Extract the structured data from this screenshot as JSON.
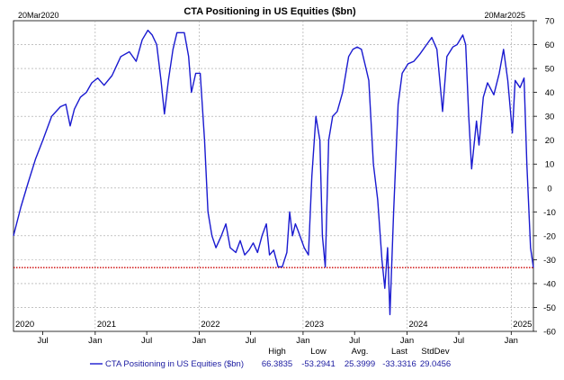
{
  "chart_data": {
    "type": "line",
    "title": "CTA Positioning in US Equities ($bn)",
    "start_label": "20Mar2020",
    "end_label": "20Mar2025",
    "x_range": [
      "2020-03-20",
      "2025-03-20"
    ],
    "ylim": [
      -60,
      70
    ],
    "y_ticks": [
      70,
      60,
      50,
      40,
      30,
      20,
      10,
      0,
      -10,
      -20,
      -30,
      -40,
      -50,
      -60
    ],
    "x_year_ticks": [
      {
        "label": "2020",
        "date": "2020-03-20"
      },
      {
        "label": "2021",
        "date": "2021-01-01"
      },
      {
        "label": "2022",
        "date": "2022-01-01"
      },
      {
        "label": "2023",
        "date": "2023-01-01"
      },
      {
        "label": "2024",
        "date": "2024-01-01"
      },
      {
        "label": "2025",
        "date": "2025-01-01"
      }
    ],
    "x_month_ticks": [
      {
        "label": "Jul",
        "date": "2020-07-01"
      },
      {
        "label": "Jan",
        "date": "2021-01-01"
      },
      {
        "label": "Jul",
        "date": "2021-07-01"
      },
      {
        "label": "Jan",
        "date": "2022-01-01"
      },
      {
        "label": "Jul",
        "date": "2022-07-01"
      },
      {
        "label": "Jan",
        "date": "2023-01-01"
      },
      {
        "label": "Jul",
        "date": "2023-07-01"
      },
      {
        "label": "Jan",
        "date": "2024-01-01"
      },
      {
        "label": "Jul",
        "date": "2024-07-01"
      },
      {
        "label": "Jan",
        "date": "2025-01-01"
      }
    ],
    "grid": true,
    "reference_line": {
      "value": -33.3316,
      "color": "#cc0000",
      "style": "dotted"
    },
    "series": [
      {
        "name": "CTA Positioning in US Equities ($bn)",
        "color": "#1a1ad0",
        "points": [
          [
            "2020-03-20",
            -20
          ],
          [
            "2020-04-15",
            -8
          ],
          [
            "2020-05-10",
            2
          ],
          [
            "2020-06-05",
            12
          ],
          [
            "2020-07-01",
            20
          ],
          [
            "2020-08-01",
            30
          ],
          [
            "2020-09-01",
            34
          ],
          [
            "2020-09-20",
            35
          ],
          [
            "2020-10-05",
            26
          ],
          [
            "2020-10-20",
            33
          ],
          [
            "2020-11-10",
            38
          ],
          [
            "2020-12-01",
            40
          ],
          [
            "2020-12-20",
            44
          ],
          [
            "2021-01-10",
            46
          ],
          [
            "2021-02-01",
            43
          ],
          [
            "2021-03-01",
            47
          ],
          [
            "2021-04-01",
            55
          ],
          [
            "2021-05-01",
            57
          ],
          [
            "2021-05-25",
            53
          ],
          [
            "2021-06-15",
            62
          ],
          [
            "2021-07-05",
            66
          ],
          [
            "2021-07-20",
            64
          ],
          [
            "2021-08-05",
            60
          ],
          [
            "2021-08-20",
            45
          ],
          [
            "2021-09-01",
            31
          ],
          [
            "2021-09-15",
            45
          ],
          [
            "2021-10-01",
            58
          ],
          [
            "2021-10-15",
            65
          ],
          [
            "2021-11-10",
            65
          ],
          [
            "2021-11-25",
            55
          ],
          [
            "2021-12-05",
            40
          ],
          [
            "2021-12-20",
            48
          ],
          [
            "2022-01-05",
            48
          ],
          [
            "2022-01-20",
            20
          ],
          [
            "2022-02-01",
            -10
          ],
          [
            "2022-02-15",
            -20
          ],
          [
            "2022-03-01",
            -25
          ],
          [
            "2022-03-20",
            -20
          ],
          [
            "2022-04-05",
            -15
          ],
          [
            "2022-04-20",
            -25
          ],
          [
            "2022-05-10",
            -27
          ],
          [
            "2022-05-25",
            -22
          ],
          [
            "2022-06-10",
            -28
          ],
          [
            "2022-06-25",
            -26
          ],
          [
            "2022-07-10",
            -23
          ],
          [
            "2022-07-25",
            -27
          ],
          [
            "2022-08-10",
            -20
          ],
          [
            "2022-08-25",
            -15
          ],
          [
            "2022-09-05",
            -28
          ],
          [
            "2022-09-20",
            -26
          ],
          [
            "2022-10-05",
            -33
          ],
          [
            "2022-10-20",
            -33
          ],
          [
            "2022-11-05",
            -27
          ],
          [
            "2022-11-15",
            -10
          ],
          [
            "2022-11-25",
            -20
          ],
          [
            "2022-12-05",
            -15
          ],
          [
            "2022-12-15",
            -18
          ],
          [
            "2023-01-05",
            -25
          ],
          [
            "2023-01-20",
            -28
          ],
          [
            "2023-02-01",
            5
          ],
          [
            "2023-02-15",
            30
          ],
          [
            "2023-03-01",
            20
          ],
          [
            "2023-03-10",
            -20
          ],
          [
            "2023-03-20",
            -33
          ],
          [
            "2023-04-01",
            20
          ],
          [
            "2023-04-15",
            30
          ],
          [
            "2023-05-01",
            32
          ],
          [
            "2023-05-20",
            40
          ],
          [
            "2023-06-10",
            55
          ],
          [
            "2023-06-25",
            58
          ],
          [
            "2023-07-10",
            59
          ],
          [
            "2023-07-25",
            58
          ],
          [
            "2023-08-10",
            50
          ],
          [
            "2023-08-20",
            45
          ],
          [
            "2023-09-05",
            10
          ],
          [
            "2023-09-20",
            -5
          ],
          [
            "2023-10-05",
            -30
          ],
          [
            "2023-10-15",
            -42
          ],
          [
            "2023-10-25",
            -25
          ],
          [
            "2023-11-02",
            -53
          ],
          [
            "2023-11-15",
            -10
          ],
          [
            "2023-12-01",
            35
          ],
          [
            "2023-12-15",
            48
          ],
          [
            "2024-01-05",
            52
          ],
          [
            "2024-01-25",
            53
          ],
          [
            "2024-02-15",
            56
          ],
          [
            "2024-03-10",
            60
          ],
          [
            "2024-03-28",
            63
          ],
          [
            "2024-04-15",
            58
          ],
          [
            "2024-04-25",
            45
          ],
          [
            "2024-05-05",
            32
          ],
          [
            "2024-05-20",
            55
          ],
          [
            "2024-06-10",
            59
          ],
          [
            "2024-06-25",
            60
          ],
          [
            "2024-07-15",
            64
          ],
          [
            "2024-07-25",
            60
          ],
          [
            "2024-08-05",
            30
          ],
          [
            "2024-08-15",
            8
          ],
          [
            "2024-09-01",
            28
          ],
          [
            "2024-09-10",
            18
          ],
          [
            "2024-09-25",
            38
          ],
          [
            "2024-10-10",
            44
          ],
          [
            "2024-11-01",
            39
          ],
          [
            "2024-11-20",
            48
          ],
          [
            "2024-12-05",
            58
          ],
          [
            "2024-12-20",
            45
          ],
          [
            "2025-01-05",
            23
          ],
          [
            "2025-01-15",
            45
          ],
          [
            "2025-02-01",
            42
          ],
          [
            "2025-02-15",
            46
          ],
          [
            "2025-02-25",
            10
          ],
          [
            "2025-03-10",
            -25
          ],
          [
            "2025-03-20",
            -33.3316
          ]
        ]
      }
    ],
    "stats": {
      "headers": [
        "High",
        "Low",
        "Avg.",
        "Last",
        "StdDev"
      ],
      "values": [
        "66.3835",
        "-53.2941",
        "25.3999",
        "-33.3316",
        "29.0456"
      ]
    }
  }
}
